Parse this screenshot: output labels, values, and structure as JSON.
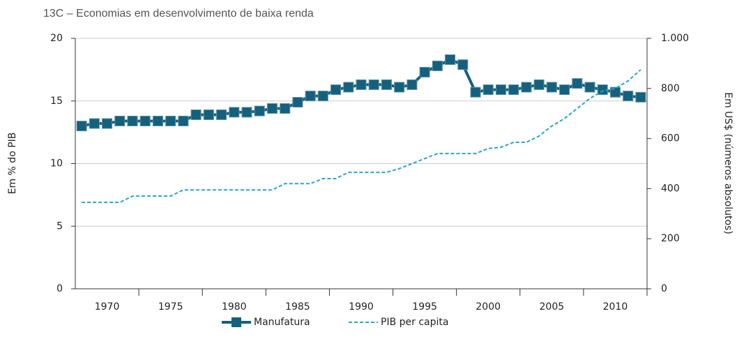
{
  "chart_data": {
    "type": "line",
    "title": "13C – Economias em desenvolvimento de baixa renda",
    "y_label": "Em % do PIB",
    "y2_label": "Em US$ (números absolutos)",
    "x": [
      1968,
      1969,
      1970,
      1971,
      1972,
      1973,
      1974,
      1975,
      1976,
      1977,
      1978,
      1979,
      1980,
      1981,
      1982,
      1983,
      1984,
      1985,
      1986,
      1987,
      1988,
      1989,
      1990,
      1991,
      1992,
      1993,
      1994,
      1995,
      1996,
      1997,
      1998,
      1999,
      2000,
      2001,
      2002,
      2003,
      2004,
      2005,
      2006,
      2007,
      2008,
      2009,
      2010,
      2011,
      2012
    ],
    "xlim": [
      1967.5,
      2012.5
    ],
    "xticks": [
      1970,
      1975,
      1980,
      1985,
      1990,
      1995,
      2000,
      2005,
      2010
    ],
    "ylim": [
      0,
      20
    ],
    "yticks": [
      0,
      5,
      10,
      15,
      20
    ],
    "y2lim": [
      0,
      1000
    ],
    "y2ticks": [
      0,
      200,
      400,
      600,
      800,
      {
        "value": 1000,
        "label": "1.000"
      }
    ],
    "grid": true,
    "series": [
      {
        "name": "Manufatura",
        "color": "#14607d",
        "marker": "square",
        "values": [
          13.0,
          13.2,
          13.2,
          13.4,
          13.4,
          13.4,
          13.4,
          13.4,
          13.4,
          13.9,
          13.9,
          13.9,
          14.1,
          14.1,
          14.2,
          14.4,
          14.4,
          14.9,
          15.4,
          15.4,
          15.9,
          16.1,
          16.3,
          16.3,
          16.3,
          16.1,
          16.3,
          17.3,
          17.8,
          18.3,
          17.9,
          15.7,
          15.9,
          15.9,
          15.9,
          16.1,
          16.3,
          16.1,
          15.9,
          16.4,
          16.1,
          15.9,
          15.7,
          15.4,
          15.3
        ]
      },
      {
        "name": "PIB per capita",
        "color": "#2aa3c8",
        "axis": "y2",
        "dashed": true,
        "values": [
          345,
          345,
          345,
          345,
          370,
          370,
          370,
          370,
          395,
          395,
          395,
          395,
          395,
          395,
          395,
          395,
          420,
          420,
          420,
          440,
          440,
          465,
          465,
          465,
          465,
          480,
          500,
          520,
          540,
          540,
          540,
          540,
          560,
          565,
          585,
          585,
          610,
          650,
          680,
          720,
          760,
          790,
          800,
          830,
          875
        ]
      }
    ]
  }
}
